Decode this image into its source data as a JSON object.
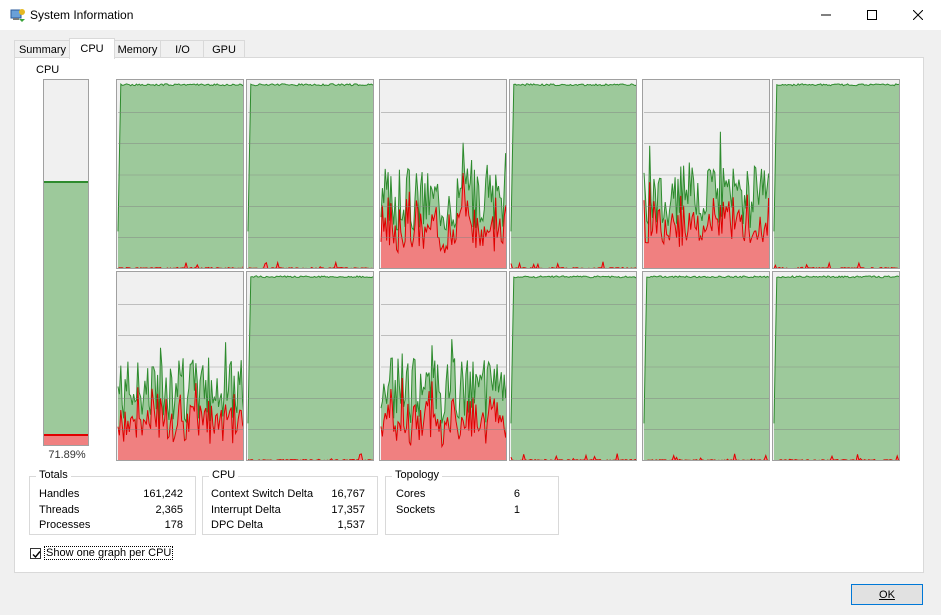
{
  "window": {
    "title": "System Information",
    "icon": "system-info-icon",
    "controls": [
      "minimize-icon",
      "maximize-icon",
      "close-icon"
    ]
  },
  "tabs": [
    {
      "label": "Summary",
      "active": false
    },
    {
      "label": "CPU",
      "active": true
    },
    {
      "label": "Memory",
      "active": false
    },
    {
      "label": "I/O",
      "active": false
    },
    {
      "label": "GPU",
      "active": false
    }
  ],
  "cpu_total": {
    "label": "CPU",
    "percent_text": "71.89%",
    "usage_fraction": 0.7189,
    "kernel_fraction": 0.025
  },
  "cpu_graphs": [
    {
      "pattern": "full",
      "seed": 1
    },
    {
      "pattern": "full",
      "seed": 2
    },
    {
      "pattern": "busy",
      "seed": 3
    },
    {
      "pattern": "full",
      "seed": 4
    },
    {
      "pattern": "busy",
      "seed": 5
    },
    {
      "pattern": "full",
      "seed": 6
    },
    {
      "pattern": "busy",
      "seed": 7
    },
    {
      "pattern": "full",
      "seed": 8
    },
    {
      "pattern": "busy",
      "seed": 9
    },
    {
      "pattern": "full",
      "seed": 10
    },
    {
      "pattern": "full",
      "seed": 11
    },
    {
      "pattern": "full",
      "seed": 12
    }
  ],
  "colors": {
    "graph_bg": "#f0f0f0",
    "usage_fill": "#9dc99b",
    "usage_line": "#2e8b2e",
    "kernel_fill": "#f08080",
    "kernel_line": "#e00000",
    "grid": "#808080",
    "accent": "#0078d7"
  },
  "totals": {
    "title": "Totals",
    "rows": [
      {
        "label": "Handles",
        "value": "161,242"
      },
      {
        "label": "Threads",
        "value": "2,365"
      },
      {
        "label": "Processes",
        "value": "178"
      }
    ]
  },
  "cpu_stats": {
    "title": "CPU",
    "rows": [
      {
        "label": "Context Switch Delta",
        "value": "16,767"
      },
      {
        "label": "Interrupt Delta",
        "value": "17,357"
      },
      {
        "label": "DPC Delta",
        "value": "1,537"
      }
    ]
  },
  "topology": {
    "title": "Topology",
    "rows": [
      {
        "label": "Cores",
        "value": "6"
      },
      {
        "label": "Sockets",
        "value": "1"
      }
    ]
  },
  "options": {
    "one_graph_per_cpu_label": "Show one graph per CPU",
    "one_graph_per_cpu_checked": true
  },
  "buttons": {
    "ok_label": "OK"
  }
}
